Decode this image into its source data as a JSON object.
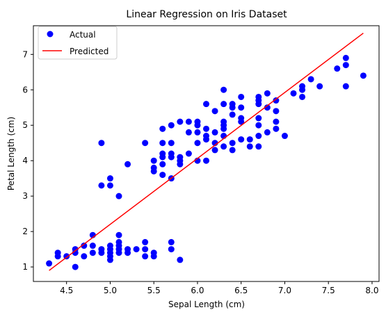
{
  "chart_data": {
    "type": "scatter",
    "title": "Linear Regression on Iris Dataset",
    "xlabel": "Sepal Length (cm)",
    "ylabel": "Petal Length (cm)",
    "xlim": [
      4.12,
      8.08
    ],
    "ylim": [
      0.59,
      7.81
    ],
    "xticks": [
      4.5,
      5.0,
      5.5,
      6.0,
      6.5,
      7.0,
      7.5,
      8.0
    ],
    "xtick_labels": [
      "4.5",
      "5.0",
      "5.5",
      "6.0",
      "6.5",
      "7.0",
      "7.5",
      "8.0"
    ],
    "yticks": [
      1,
      2,
      3,
      4,
      5,
      6,
      7
    ],
    "ytick_labels": [
      "1",
      "2",
      "3",
      "4",
      "5",
      "6",
      "7"
    ],
    "grid": false,
    "legend": {
      "placement": "top-left",
      "entries": [
        "Actual",
        "Predicted"
      ]
    },
    "series": [
      {
        "name": "Actual",
        "kind": "scatter",
        "color": "#0000ff",
        "points": [
          [
            4.3,
            1.1
          ],
          [
            4.4,
            1.3
          ],
          [
            4.4,
            1.4
          ],
          [
            4.5,
            1.3
          ],
          [
            4.6,
            1.0
          ],
          [
            4.6,
            1.4
          ],
          [
            4.6,
            1.5
          ],
          [
            4.7,
            1.3
          ],
          [
            4.7,
            1.6
          ],
          [
            4.8,
            1.4
          ],
          [
            4.8,
            1.6
          ],
          [
            4.8,
            1.9
          ],
          [
            4.9,
            1.4
          ],
          [
            4.9,
            1.5
          ],
          [
            5.0,
            1.2
          ],
          [
            5.0,
            1.3
          ],
          [
            5.0,
            1.4
          ],
          [
            5.0,
            1.5
          ],
          [
            5.0,
            1.6
          ],
          [
            5.1,
            1.4
          ],
          [
            5.1,
            1.5
          ],
          [
            5.1,
            1.6
          ],
          [
            5.1,
            1.7
          ],
          [
            5.1,
            1.9
          ],
          [
            5.2,
            1.4
          ],
          [
            5.2,
            1.5
          ],
          [
            5.3,
            1.5
          ],
          [
            5.4,
            1.3
          ],
          [
            5.4,
            1.5
          ],
          [
            5.4,
            1.7
          ],
          [
            5.5,
            1.3
          ],
          [
            5.5,
            1.4
          ],
          [
            5.7,
            1.5
          ],
          [
            5.7,
            1.7
          ],
          [
            5.8,
            1.2
          ],
          [
            4.9,
            3.3
          ],
          [
            4.9,
            4.5
          ],
          [
            5.0,
            3.3
          ],
          [
            5.0,
            3.5
          ],
          [
            5.1,
            3.0
          ],
          [
            5.2,
            3.9
          ],
          [
            5.4,
            4.5
          ],
          [
            5.5,
            3.7
          ],
          [
            5.5,
            3.8
          ],
          [
            5.5,
            4.0
          ],
          [
            5.6,
            3.6
          ],
          [
            5.6,
            3.9
          ],
          [
            5.6,
            4.1
          ],
          [
            5.6,
            4.2
          ],
          [
            5.6,
            4.5
          ],
          [
            5.6,
            4.9
          ],
          [
            5.7,
            3.5
          ],
          [
            5.7,
            4.1
          ],
          [
            5.7,
            4.2
          ],
          [
            5.7,
            4.5
          ],
          [
            5.7,
            5.0
          ],
          [
            5.8,
            3.9
          ],
          [
            5.8,
            4.0
          ],
          [
            5.8,
            4.1
          ],
          [
            5.8,
            5.1
          ],
          [
            5.9,
            4.2
          ],
          [
            5.9,
            4.8
          ],
          [
            5.9,
            5.1
          ],
          [
            6.0,
            4.0
          ],
          [
            6.0,
            4.5
          ],
          [
            6.0,
            4.8
          ],
          [
            6.0,
            5.0
          ],
          [
            6.0,
            5.1
          ],
          [
            6.1,
            4.0
          ],
          [
            6.1,
            4.6
          ],
          [
            6.1,
            4.7
          ],
          [
            6.1,
            4.9
          ],
          [
            6.1,
            5.6
          ],
          [
            6.2,
            4.3
          ],
          [
            6.2,
            4.5
          ],
          [
            6.2,
            4.8
          ],
          [
            6.2,
            5.4
          ],
          [
            6.3,
            4.4
          ],
          [
            6.3,
            4.7
          ],
          [
            6.3,
            4.9
          ],
          [
            6.3,
            5.0
          ],
          [
            6.3,
            5.1
          ],
          [
            6.3,
            5.6
          ],
          [
            6.3,
            6.0
          ],
          [
            6.4,
            4.3
          ],
          [
            6.4,
            4.5
          ],
          [
            6.4,
            5.3
          ],
          [
            6.4,
            5.5
          ],
          [
            6.4,
            5.6
          ],
          [
            6.5,
            4.6
          ],
          [
            6.5,
            5.1
          ],
          [
            6.5,
            5.2
          ],
          [
            6.5,
            5.5
          ],
          [
            6.5,
            5.8
          ],
          [
            6.6,
            4.4
          ],
          [
            6.6,
            4.6
          ],
          [
            6.7,
            4.4
          ],
          [
            6.7,
            4.7
          ],
          [
            6.7,
            5.0
          ],
          [
            6.7,
            5.2
          ],
          [
            6.7,
            5.6
          ],
          [
            6.7,
            5.7
          ],
          [
            6.7,
            5.8
          ],
          [
            6.8,
            4.8
          ],
          [
            6.8,
            5.5
          ],
          [
            6.8,
            5.9
          ],
          [
            6.9,
            4.9
          ],
          [
            6.9,
            5.1
          ],
          [
            6.9,
            5.4
          ],
          [
            6.9,
            5.7
          ],
          [
            7.0,
            4.7
          ],
          [
            7.1,
            5.9
          ],
          [
            7.2,
            5.8
          ],
          [
            7.2,
            6.0
          ],
          [
            7.2,
            6.1
          ],
          [
            7.3,
            6.3
          ],
          [
            7.4,
            6.1
          ],
          [
            7.6,
            6.6
          ],
          [
            7.7,
            6.1
          ],
          [
            7.7,
            6.7
          ],
          [
            7.7,
            6.9
          ],
          [
            7.9,
            6.4
          ]
        ]
      },
      {
        "name": "Predicted",
        "kind": "line",
        "color": "#ff0000",
        "points": [
          [
            4.3,
            0.9
          ],
          [
            7.9,
            7.6
          ]
        ]
      }
    ]
  }
}
